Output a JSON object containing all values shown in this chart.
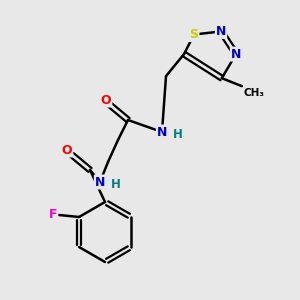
{
  "background_color": "#e8e8e8",
  "bond_color": "#000000",
  "atom_colors": {
    "N": "#0000cc",
    "O": "#ff0000",
    "F": "#ff00cc",
    "S": "#cccc00",
    "C": "#000000",
    "H": "#008080"
  },
  "figsize": [
    3.0,
    3.0
  ],
  "dpi": 100
}
